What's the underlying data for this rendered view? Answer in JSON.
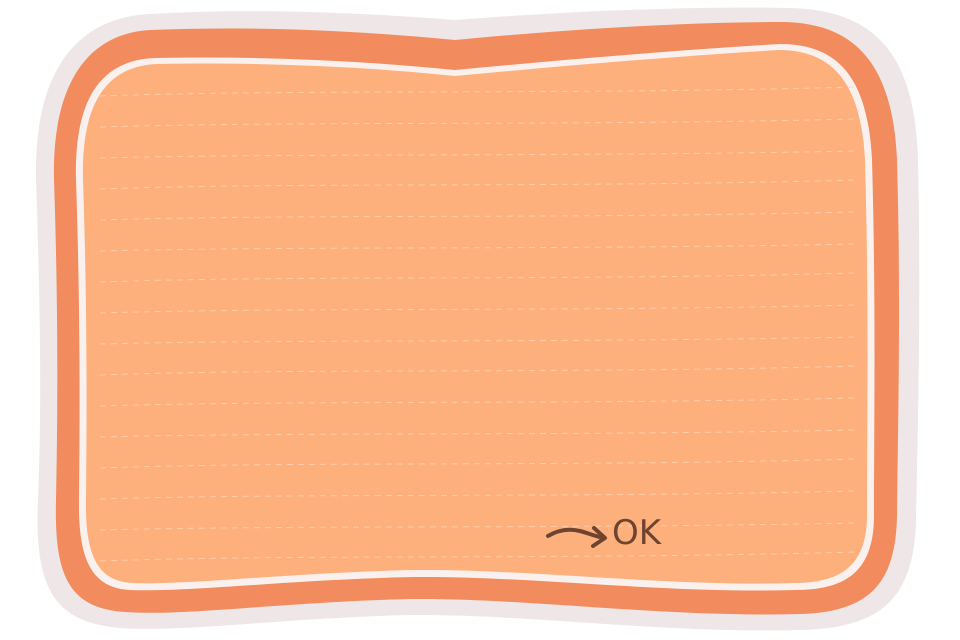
{
  "dialog": {
    "confirm_label": "OK",
    "confirm_icon": "arrow-right-icon"
  },
  "colors": {
    "outer_shadow": "#efe6e7",
    "frame_orange": "#f28c5e",
    "inner_border": "#faf1ee",
    "paper_fill": "#fdb07c",
    "ruled_line": "#fdd1b0",
    "ink": "#6e4430"
  }
}
